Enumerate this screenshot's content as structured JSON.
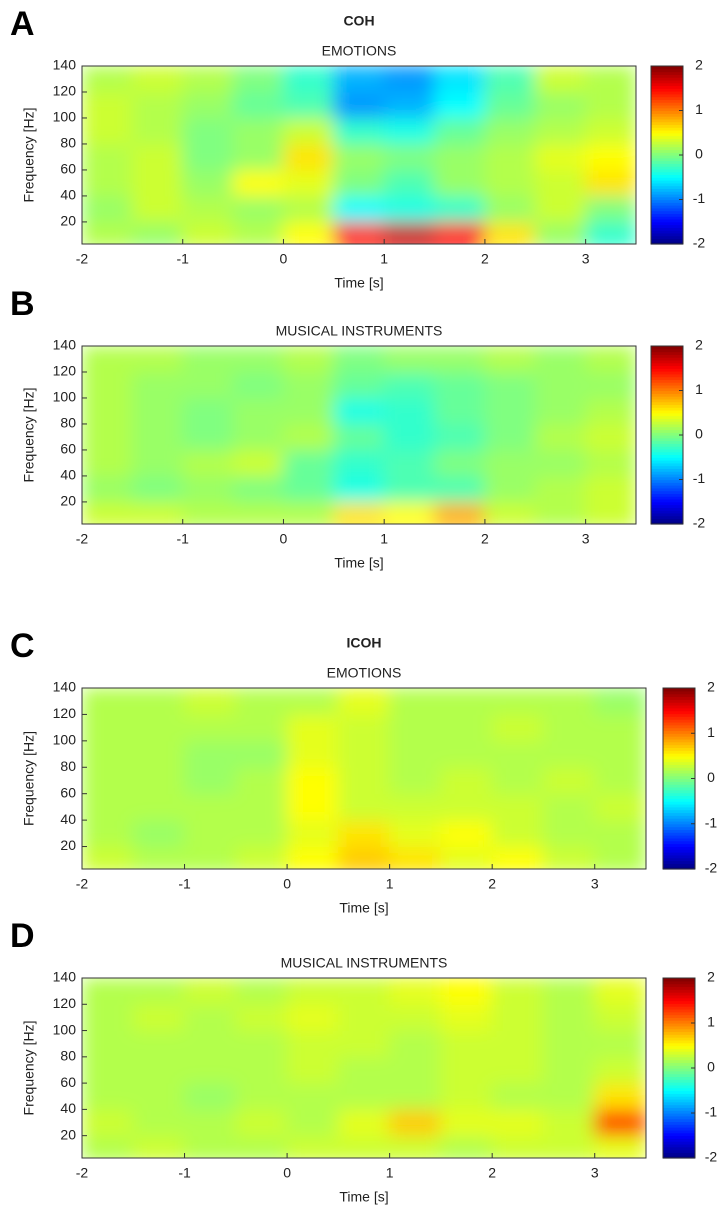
{
  "chart_data": [
    {
      "type": "heatmap",
      "panel_label": "A",
      "suptitle": "COH",
      "title": "EMOTIONS",
      "xlabel": "Time [s]",
      "ylabel": "Frequency [Hz]",
      "x": [
        -1.75,
        -1.25,
        -0.75,
        -0.25,
        0.25,
        0.75,
        1.25,
        1.75,
        2.25,
        2.75,
        3.25
      ],
      "y": [
        10,
        30,
        50,
        70,
        90,
        110,
        130
      ],
      "values": [
        [
          0.2,
          0.1,
          0.3,
          0.2,
          0.5,
          1.4,
          1.7,
          1.5,
          0.6,
          0.1,
          -0.3
        ],
        [
          0.1,
          0.3,
          0.2,
          0.1,
          0.2,
          -0.5,
          -0.4,
          -0.3,
          0.1,
          0.3,
          0.0
        ],
        [
          0.2,
          0.3,
          0.1,
          0.5,
          0.4,
          0.0,
          -0.2,
          0.1,
          0.2,
          0.3,
          0.6
        ],
        [
          0.2,
          0.3,
          0.0,
          0.1,
          0.6,
          0.1,
          0.0,
          0.1,
          0.2,
          0.4,
          0.5
        ],
        [
          0.3,
          0.2,
          0.0,
          0.1,
          0.3,
          -0.3,
          -0.4,
          -0.1,
          0.1,
          0.2,
          0.3
        ],
        [
          0.3,
          0.2,
          0.1,
          -0.1,
          -0.2,
          -0.9,
          -0.8,
          -0.5,
          -0.1,
          0.1,
          0.2
        ],
        [
          0.2,
          0.3,
          0.2,
          0.0,
          -0.3,
          -0.8,
          -0.9,
          -0.6,
          -0.2,
          0.3,
          0.2
        ]
      ],
      "xlim": [
        -2,
        3.5
      ],
      "xticks": [
        -2,
        -1,
        0,
        1,
        2,
        3
      ],
      "ylim": [
        3,
        140
      ],
      "yticks": [
        20,
        40,
        60,
        80,
        100,
        120,
        140
      ],
      "colormap": "jet",
      "clim": [
        -2,
        2
      ],
      "cticks": [
        -2,
        -1,
        0,
        1,
        2
      ]
    },
    {
      "type": "heatmap",
      "panel_label": "B",
      "title": "MUSICAL INSTRUMENTS",
      "xlabel": "Time [s]",
      "ylabel": "Frequency [Hz]",
      "x": [
        -1.75,
        -1.25,
        -0.75,
        -0.25,
        0.25,
        0.75,
        1.25,
        1.75,
        2.25,
        2.75,
        3.25
      ],
      "y": [
        10,
        30,
        50,
        70,
        90,
        110,
        130
      ],
      "values": [
        [
          0.3,
          0.3,
          0.2,
          0.2,
          0.2,
          0.6,
          0.5,
          0.8,
          0.3,
          0.2,
          0.3
        ],
        [
          0.1,
          0.0,
          0.1,
          0.0,
          -0.1,
          -0.4,
          -0.2,
          -0.2,
          0.1,
          0.2,
          0.3
        ],
        [
          0.2,
          0.1,
          0.2,
          0.3,
          -0.1,
          -0.3,
          -0.2,
          0.0,
          0.1,
          0.1,
          0.2
        ],
        [
          0.2,
          0.1,
          0.0,
          0.1,
          0.2,
          -0.1,
          -0.3,
          -0.2,
          0.0,
          0.2,
          0.3
        ],
        [
          0.2,
          0.1,
          0.0,
          0.1,
          0.1,
          -0.4,
          -0.3,
          -0.1,
          0.0,
          0.1,
          0.2
        ],
        [
          0.2,
          0.1,
          0.1,
          0.0,
          0.1,
          -0.1,
          -0.2,
          -0.1,
          0.0,
          0.1,
          0.1
        ],
        [
          0.2,
          0.2,
          0.1,
          0.1,
          0.2,
          0.0,
          0.1,
          0.1,
          0.2,
          0.1,
          0.2
        ]
      ],
      "xlim": [
        -2,
        3.5
      ],
      "xticks": [
        -2,
        -1,
        0,
        1,
        2,
        3
      ],
      "ylim": [
        3,
        140
      ],
      "yticks": [
        20,
        40,
        60,
        80,
        100,
        120,
        140
      ],
      "colormap": "jet",
      "clim": [
        -2,
        2
      ],
      "cticks": [
        -2,
        -1,
        0,
        1,
        2
      ]
    },
    {
      "type": "heatmap",
      "panel_label": "C",
      "suptitle": "ICOH",
      "title": "EMOTIONS",
      "xlabel": "Time [s]",
      "ylabel": "Frequency [Hz]",
      "x": [
        -1.75,
        -1.25,
        -0.75,
        -0.25,
        0.25,
        0.75,
        1.25,
        1.75,
        2.25,
        2.75,
        3.25
      ],
      "y": [
        10,
        30,
        50,
        70,
        90,
        110,
        130
      ],
      "values": [
        [
          0.3,
          0.2,
          0.2,
          0.3,
          0.5,
          0.7,
          0.6,
          0.4,
          0.5,
          0.3,
          0.2
        ],
        [
          0.2,
          0.1,
          0.2,
          0.2,
          0.4,
          0.6,
          0.4,
          0.5,
          0.3,
          0.2,
          0.2
        ],
        [
          0.2,
          0.2,
          0.2,
          0.2,
          0.5,
          0.3,
          0.3,
          0.3,
          0.3,
          0.2,
          0.3
        ],
        [
          0.2,
          0.2,
          0.1,
          0.2,
          0.5,
          0.3,
          0.2,
          0.3,
          0.2,
          0.3,
          0.2
        ],
        [
          0.2,
          0.2,
          0.1,
          0.1,
          0.4,
          0.3,
          0.2,
          0.2,
          0.2,
          0.2,
          0.2
        ],
        [
          0.2,
          0.2,
          0.2,
          0.2,
          0.4,
          0.3,
          0.2,
          0.2,
          0.3,
          0.2,
          0.2
        ],
        [
          0.2,
          0.2,
          0.3,
          0.2,
          0.2,
          0.4,
          0.2,
          0.2,
          0.2,
          0.2,
          0.1
        ]
      ],
      "xlim": [
        -2,
        3.5
      ],
      "xticks": [
        -2,
        -1,
        0,
        1,
        2,
        3
      ],
      "ylim": [
        3,
        140
      ],
      "yticks": [
        20,
        40,
        60,
        80,
        100,
        120,
        140
      ],
      "colormap": "jet",
      "clim": [
        -2,
        2
      ],
      "cticks": [
        -2,
        -1,
        0,
        1,
        2
      ]
    },
    {
      "type": "heatmap",
      "panel_label": "D",
      "title": "MUSICAL INSTRUMENTS",
      "xlabel": "Time [s]",
      "ylabel": "Frequency [Hz]",
      "x": [
        -1.75,
        -1.25,
        -0.75,
        -0.25,
        0.25,
        0.75,
        1.25,
        1.75,
        2.25,
        2.75,
        3.25
      ],
      "y": [
        10,
        30,
        50,
        70,
        90,
        110,
        130
      ],
      "values": [
        [
          0.2,
          0.3,
          0.2,
          0.2,
          0.3,
          0.3,
          0.3,
          0.2,
          0.3,
          0.3,
          0.4
        ],
        [
          0.3,
          0.2,
          0.2,
          0.3,
          0.2,
          0.4,
          0.7,
          0.4,
          0.4,
          0.3,
          1.2
        ],
        [
          0.2,
          0.2,
          0.1,
          0.2,
          0.2,
          0.2,
          0.2,
          0.3,
          0.2,
          0.2,
          0.6
        ],
        [
          0.2,
          0.2,
          0.2,
          0.2,
          0.3,
          0.2,
          0.2,
          0.3,
          0.3,
          0.2,
          0.3
        ],
        [
          0.2,
          0.2,
          0.2,
          0.2,
          0.3,
          0.3,
          0.2,
          0.3,
          0.3,
          0.2,
          0.2
        ],
        [
          0.2,
          0.3,
          0.2,
          0.3,
          0.4,
          0.3,
          0.3,
          0.4,
          0.3,
          0.2,
          0.3
        ],
        [
          0.2,
          0.2,
          0.3,
          0.2,
          0.3,
          0.3,
          0.4,
          0.5,
          0.3,
          0.2,
          0.4
        ]
      ],
      "xlim": [
        -2,
        3.5
      ],
      "xticks": [
        -2,
        -1,
        0,
        1,
        2,
        3
      ],
      "ylim": [
        3,
        140
      ],
      "yticks": [
        20,
        40,
        60,
        80,
        100,
        120,
        140
      ],
      "colormap": "jet",
      "clim": [
        -2,
        2
      ],
      "cticks": [
        -2,
        -1,
        0,
        1,
        2
      ]
    }
  ]
}
